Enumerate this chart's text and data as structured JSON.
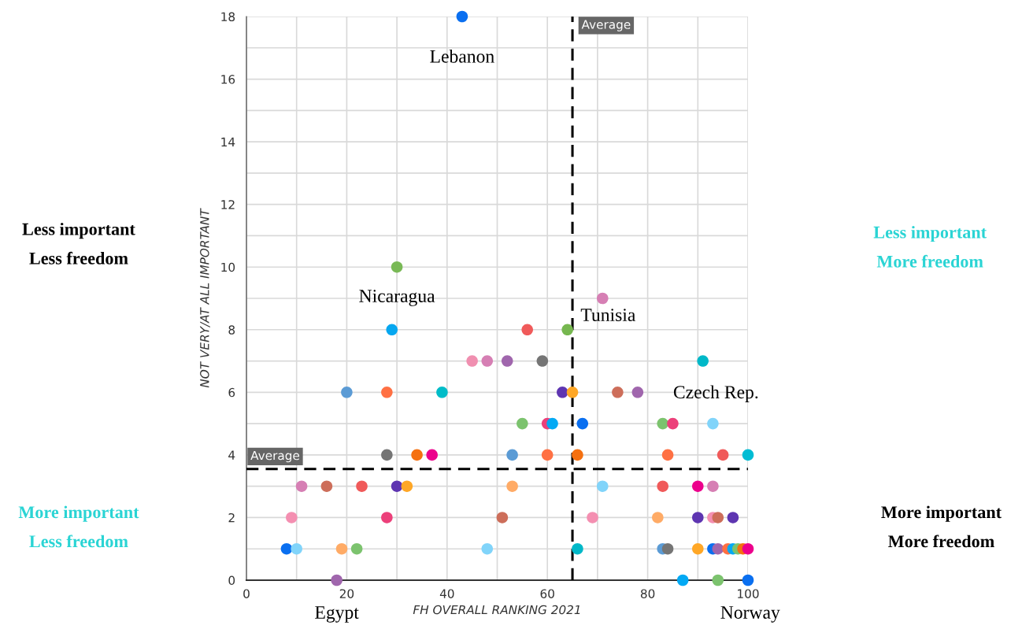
{
  "chart_data": {
    "type": "scatter",
    "xlabel": "FH OVERALL RANKING 2021",
    "ylabel": "NOT VERY/AT ALL IMPORTANT",
    "xlim": [
      0,
      100
    ],
    "ylim": [
      0,
      18
    ],
    "xticks": [
      0,
      {
        "value": 10,
        "label": null
      },
      20,
      {
        "value": 30,
        "label": null
      },
      40,
      {
        "value": 50,
        "label": null
      },
      60,
      {
        "value": 70,
        "label": null
      },
      80,
      {
        "value": 90,
        "label": null
      },
      100
    ],
    "yticks": [
      0,
      {
        "value": 1,
        "label": null
      },
      2,
      {
        "value": 3,
        "label": null
      },
      4,
      {
        "value": 5,
        "label": null
      },
      6,
      {
        "value": 7,
        "label": null
      },
      8,
      {
        "value": 9,
        "label": null
      },
      10,
      {
        "value": 11,
        "label": null
      },
      12,
      {
        "value": 13,
        "label": null
      },
      14,
      {
        "value": 15,
        "label": null
      },
      16,
      {
        "value": 17,
        "label": null
      },
      18
    ],
    "grid": true,
    "marker": "circle",
    "series": [
      {
        "x": [
          43,
          30,
          71,
          29,
          56,
          64,
          45,
          48,
          52,
          59,
          91,
          20,
          28,
          39,
          63,
          65,
          74,
          78,
          55,
          60,
          61,
          67,
          83,
          85,
          93,
          28,
          34,
          37,
          53,
          60,
          66,
          84,
          95,
          100,
          11,
          16,
          23,
          30,
          32,
          53,
          71,
          83,
          90,
          93,
          9,
          28,
          51,
          69,
          82,
          90,
          93,
          94,
          97,
          8,
          10,
          19,
          22,
          48,
          66,
          83,
          84,
          90,
          93,
          94,
          96,
          97,
          98,
          99,
          100,
          18,
          87,
          94,
          100
        ],
        "values": [
          18,
          10,
          9,
          8,
          8,
          8,
          7,
          7,
          7,
          7,
          7,
          6,
          6,
          6,
          6,
          6,
          6,
          6,
          5,
          5,
          5,
          5,
          5,
          5,
          5,
          4,
          4,
          4,
          4,
          4,
          4,
          4,
          4,
          4,
          3,
          3,
          3,
          3,
          3,
          3,
          3,
          3,
          3,
          3,
          2,
          2,
          2,
          2,
          2,
          2,
          2,
          2,
          2,
          1,
          1,
          1,
          1,
          1,
          1,
          1,
          1,
          1,
          1,
          1,
          1,
          1,
          1,
          1,
          1,
          0,
          0,
          0,
          0
        ],
        "colors": [
          "#0a6ff0",
          "#79b956",
          "#d67fb4",
          "#06a7f0",
          "#f05a5a",
          "#76b74f",
          "#f08fb0",
          "#d67fb4",
          "#a066ad",
          "#757575",
          "#00b8c8",
          "#5b9bd5",
          "#ff7043",
          "#00bcc8",
          "#5e35b1",
          "#ffa726",
          "#cd6e5a",
          "#a066ad",
          "#7cc36e",
          "#ec407a",
          "#03a9f4",
          "#0a6ff0",
          "#7cc36e",
          "#ec407a",
          "#81d4fa",
          "#757575",
          "#f57010",
          "#ec008c",
          "#5b9bd5",
          "#ff7043",
          "#f57010",
          "#ff7043",
          "#f05a5a",
          "#00bcd4",
          "#d67fb4",
          "#cd6e5a",
          "#f05a5a",
          "#5e35b1",
          "#ffa726",
          "#ffab66",
          "#81d4fa",
          "#f05a5a",
          "#ec008c",
          "#d67fb4",
          "#f48fb1",
          "#ec407a",
          "#cd6e5a",
          "#f48fb1",
          "#ffab66",
          "#5e35b1",
          "#f48fb1",
          "#cd6e5a",
          "#5e35b1",
          "#0a6ff0",
          "#81d4fa",
          "#ffab66",
          "#7cc36e",
          "#81d4fa",
          "#00b8c8",
          "#5b9bd5",
          "#757575",
          "#ffa726",
          "#0a6ff0",
          "#a066ad",
          "#ff7043",
          "#03a9f4",
          "#7cc36e",
          "#f57010",
          "#ec008c",
          "#a066ad",
          "#03a9f4",
          "#7cc36e",
          "#0a6ff0"
        ]
      }
    ],
    "ref_lines": [
      {
        "axis": "x",
        "value": 65,
        "label": "Average",
        "color": "#000000",
        "line_style": "dashed"
      },
      {
        "axis": "y",
        "value": 3.55,
        "label": "Average",
        "color": "#000000",
        "line_style": "dashed"
      }
    ],
    "annotations": [
      {
        "text": "Lebanon",
        "x": 43,
        "y": 18
      },
      {
        "text": "Nicaragua",
        "x": 30,
        "y": 10
      },
      {
        "text": "Tunisia",
        "x": 64,
        "y": 8
      },
      {
        "text": "Czech Rep.",
        "x": 91,
        "y": 7
      },
      {
        "text": "Egypt",
        "x": 18,
        "y": 0
      },
      {
        "text": "Norway",
        "x": 100,
        "y": 0
      },
      "Less important\nLess freedom",
      "Less important\nMore freedom",
      "More important\nLess freedom",
      "More important\nMore freedom"
    ]
  }
}
